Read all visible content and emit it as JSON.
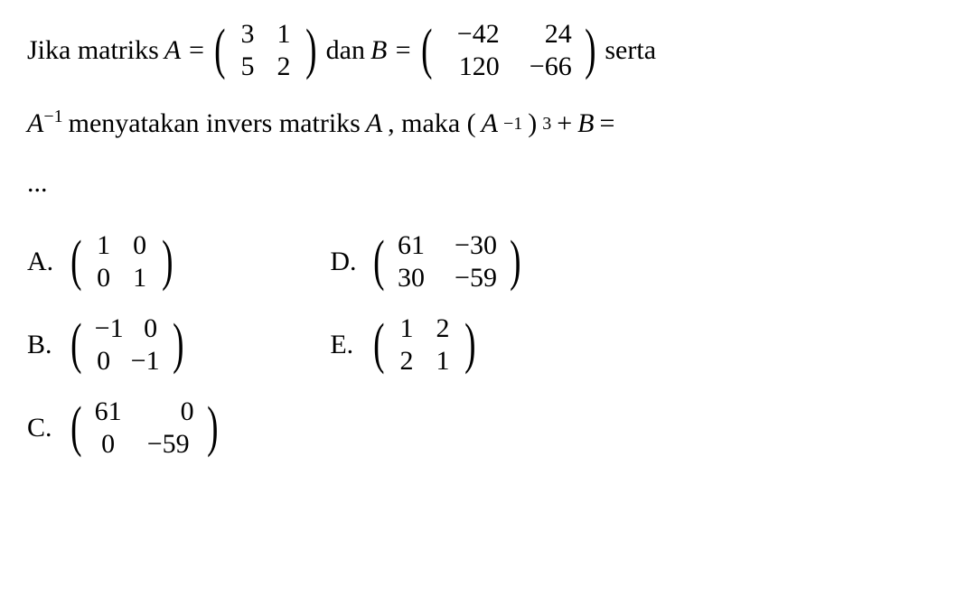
{
  "problem": {
    "pre_text": "Jika matriks",
    "A_eq": "A =",
    "matrixA": {
      "r1c1": "3",
      "r1c2": "1",
      "r2c1": "5",
      "r2c2": "2"
    },
    "mid_text": "dan",
    "B_eq": "B =",
    "matrixB": {
      "r1c1": "−42",
      "r1c2": "24",
      "r2c1": "120",
      "r2c2": "−66"
    },
    "post_text": "serta",
    "line2_pre": "A",
    "line2_sup1": "−1",
    "line2_mid": "menyatakan invers matriks",
    "line2_A": "A",
    "line2_post": ", maka (",
    "line2_A2": "A",
    "line2_sup2": "−1",
    "line2_close": ")",
    "line2_sup3": "3",
    "line2_plus": " + ",
    "line2_B": "B",
    "line2_eq": " =",
    "line3": "..."
  },
  "options": {
    "A": {
      "label": "A.",
      "m": {
        "r1c1": "1",
        "r1c2": "0",
        "r2c1": "0",
        "r2c2": "1"
      }
    },
    "B": {
      "label": "B.",
      "m": {
        "r1c1": "−1",
        "r1c2": "0",
        "r2c1": "0",
        "r2c2": "−1"
      }
    },
    "C": {
      "label": "C.",
      "m": {
        "r1c1": "61",
        "r1c2": "0",
        "r2c1": "0",
        "r2c2": "−59"
      }
    },
    "D": {
      "label": "D.",
      "m": {
        "r1c1": "61",
        "r1c2": "−30",
        "r2c1": "30",
        "r2c2": "−59"
      }
    },
    "E": {
      "label": "E.",
      "m": {
        "r1c1": "1",
        "r1c2": "2",
        "r2c1": "2",
        "r2c2": "1"
      }
    }
  },
  "styling": {
    "font_family": "Times New Roman",
    "font_size_pt": 22,
    "text_color": "#000000",
    "background_color": "#ffffff"
  }
}
